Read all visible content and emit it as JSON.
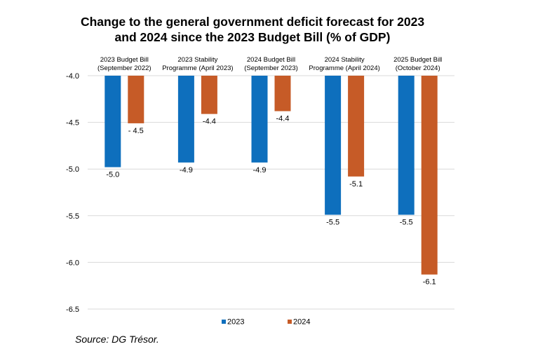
{
  "chart_data": {
    "type": "bar",
    "title_lines": [
      "Change to the general government deficit forecast for 2023",
      "and 2024 since the 2023 Budget Bill (% of GDP)"
    ],
    "categories": [
      [
        "2023 Budget Bill",
        "(September 2022)"
      ],
      [
        "2023 Stability",
        "Programme (April 2023)"
      ],
      [
        "2024 Budget Bill",
        "(September 2023)"
      ],
      [
        "2024 Stability",
        "Programme (April 2024)"
      ],
      [
        "2025 Budget Bill",
        "(October 2024)"
      ]
    ],
    "series": [
      {
        "name": "2023",
        "color": "#0e6fbd",
        "values": [
          -4.98,
          -4.93,
          -4.93,
          -5.49,
          -5.49
        ],
        "labels": [
          "-5.0",
          "-4.9",
          "-4.9",
          "-5.5",
          "-5.5"
        ]
      },
      {
        "name": "2024",
        "color": "#c65b27",
        "values": [
          -4.51,
          -4.41,
          -4.38,
          -5.08,
          -6.13
        ],
        "labels": [
          "- 4.5",
          "-4.4",
          "-4.4",
          "-5.1",
          "-6.1"
        ]
      }
    ],
    "ylim": [
      -6.5,
      -4.0
    ],
    "yticks": [
      -4.0,
      -4.5,
      -5.0,
      -5.5,
      -6.0,
      -6.5
    ],
    "ytick_labels": [
      "-4.0",
      "-4.5",
      "-5.0",
      "-5.5",
      "-6.0",
      "-6.5"
    ],
    "grid": true,
    "legend_position": "bottom-center"
  },
  "source": "Source: DG Trésor."
}
